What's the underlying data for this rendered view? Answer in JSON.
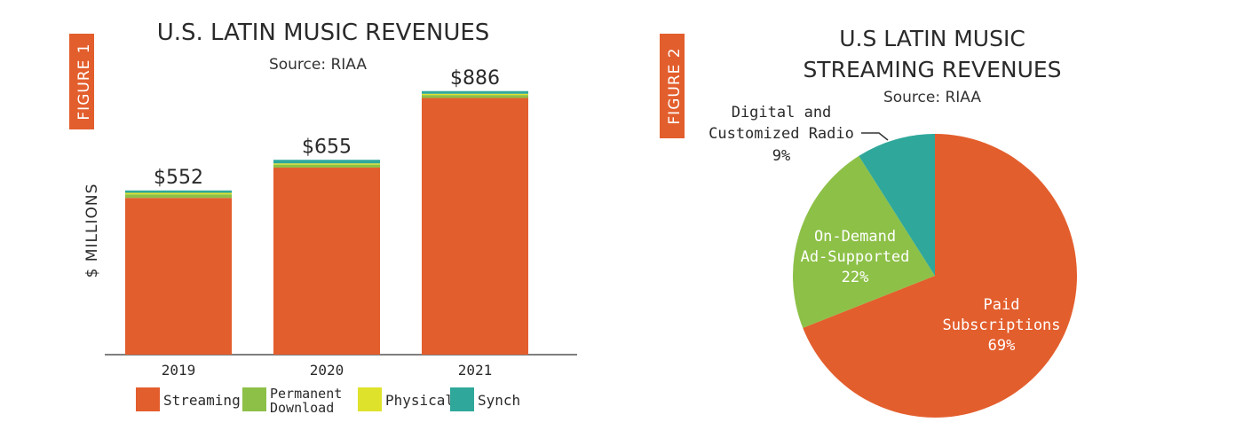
{
  "figure1": {
    "tag": "FIGURE 1",
    "title": "U.S. LATIN MUSIC REVENUES",
    "subtitle": "Source: RIAA",
    "ylabel": "$ MILLIONS",
    "colors": {
      "Streaming": "#e35e2d",
      "Permanent Download": "#8dc047",
      "Physical": "#dfe22b",
      "Synch": "#2fa89b",
      "tag_bg": "#e35e2d"
    }
  },
  "figure2": {
    "tag": "FIGURE 2",
    "title_line1": "U.S LATIN MUSIC",
    "title_line2": "STREAMING REVENUES",
    "subtitle": "Source: RIAA",
    "colors": {
      "Paid Subscriptions": "#e35e2d",
      "On-Demand Ad-Supported": "#8dc047",
      "Digital and Customized Radio": "#2fa89b"
    }
  },
  "chart_data": [
    {
      "type": "bar",
      "title": "U.S. LATIN MUSIC REVENUES",
      "subtitle": "Source: RIAA",
      "ylabel": "$ MILLIONS",
      "xlabel": "",
      "categories": [
        "2019",
        "2020",
        "2021"
      ],
      "totals": [
        "$552",
        "$655",
        "$886"
      ],
      "total_values": [
        552,
        655,
        886
      ],
      "series": [
        {
          "name": "Streaming",
          "values": [
            527,
            629,
            863
          ]
        },
        {
          "name": "Permanent Download",
          "values": [
            12,
            10,
            10
          ]
        },
        {
          "name": "Physical",
          "values": [
            5,
            4,
            4
          ]
        },
        {
          "name": "Synch",
          "values": [
            8,
            12,
            9
          ]
        }
      ],
      "legend": [
        {
          "name": "Streaming",
          "label_lines": [
            "Streaming"
          ]
        },
        {
          "name": "Permanent Download",
          "label_lines": [
            "Permanent",
            "Download"
          ]
        },
        {
          "name": "Physical",
          "label_lines": [
            "Physical"
          ]
        },
        {
          "name": "Synch",
          "label_lines": [
            "Synch"
          ]
        }
      ],
      "ylim": [
        0,
        930
      ],
      "grid": false,
      "legend_placement": "bottom"
    },
    {
      "type": "pie",
      "title": "U.S LATIN MUSIC STREAMING REVENUES",
      "subtitle": "Source: RIAA",
      "slices": [
        {
          "name": "Paid Subscriptions",
          "value": 69,
          "label_lines": [
            "Paid",
            "Subscriptions",
            "69%"
          ]
        },
        {
          "name": "On-Demand Ad-Supported",
          "value": 22,
          "label_lines": [
            "On-Demand",
            "Ad-Supported",
            "22%"
          ]
        },
        {
          "name": "Digital and Customized Radio",
          "value": 9,
          "label_lines": [
            "Digital and",
            "Customized Radio",
            "9%"
          ]
        }
      ]
    }
  ]
}
